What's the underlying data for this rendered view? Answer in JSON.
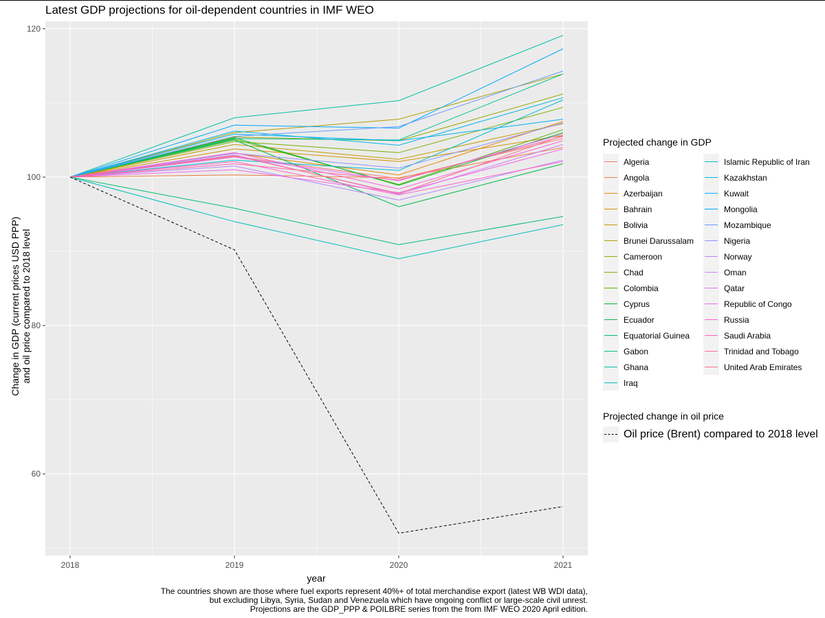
{
  "chart_data": {
    "type": "line",
    "title": "Latest GDP projections for oil-dependent countries in IMF WEO",
    "xlabel": "year",
    "ylabel_lines": [
      "Change in GDP (current prices USD PPP)",
      "and oil price  compared to 2018 level"
    ],
    "x": [
      "2018",
      "2019",
      "2020",
      "2021"
    ],
    "ylim": [
      49,
      121
    ],
    "yticks": [
      "60",
      "80",
      "100",
      "120"
    ],
    "caption_lines": [
      "The countries shown are those  where fuel exports represent 40%+ of total merchandise export (latest WB WDI data),",
      "but excluding Libya, Syria, Sudan and Venezuela which have ongoing conflict or large-scale civil unrest.",
      "Projections are the GDP_PPP & POILBRE series from the from IMF WEO 2020 April edition."
    ],
    "legend_gdp_title": "Projected change in GDP",
    "legend_oil_title": "Projected change in oil price",
    "series": [
      {
        "name": "Algeria",
        "color": "#F8766D",
        "values": [
          100,
          102.8,
          99.8,
          105.2
        ]
      },
      {
        "name": "Angola",
        "color": "#EE8044",
        "values": [
          100,
          100.3,
          99.9,
          104.0
        ]
      },
      {
        "name": "Azerbaijan",
        "color": "#E38900",
        "values": [
          100,
          103.2,
          100.3,
          107.5
        ]
      },
      {
        "name": "Bahrain",
        "color": "#D59100",
        "values": [
          100,
          103.8,
          102.1,
          105.6
        ]
      },
      {
        "name": "Bolivia",
        "color": "#C49A00",
        "values": [
          100,
          104.4,
          102.4,
          107.2
        ]
      },
      {
        "name": "Brunei Darussalam",
        "color": "#B0A000",
        "values": [
          100,
          106.0,
          107.8,
          113.9
        ]
      },
      {
        "name": "Cameroon",
        "color": "#99A800",
        "values": [
          100,
          105.4,
          104.9,
          111.2
        ]
      },
      {
        "name": "Chad",
        "color": "#7CAE00",
        "values": [
          100,
          104.8,
          103.3,
          109.4
        ]
      },
      {
        "name": "Colombia",
        "color": "#53B400",
        "values": [
          100,
          105.1,
          99.0,
          106.4
        ]
      },
      {
        "name": "Cyprus",
        "color": "#00B81F",
        "values": [
          100,
          105.3,
          98.9,
          106.0
        ]
      },
      {
        "name": "Ecuador",
        "color": "#00BB4E",
        "values": [
          100,
          105.0,
          96.0,
          101.8
        ]
      },
      {
        "name": "Equatorial Guinea",
        "color": "#00BE6F",
        "values": [
          100,
          95.8,
          90.9,
          94.7
        ]
      },
      {
        "name": "Gabon",
        "color": "#00C08B",
        "values": [
          100,
          105.2,
          105.0,
          113.9
        ]
      },
      {
        "name": "Ghana",
        "color": "#00C0A4",
        "values": [
          100,
          108.0,
          110.3,
          119.1
        ]
      },
      {
        "name": "Iraq",
        "color": "#00BFBA",
        "values": [
          100,
          94.0,
          89.0,
          93.6
        ]
      },
      {
        "name": "Islamic Republic of Iran",
        "color": "#00BCD0",
        "values": [
          100,
          102.3,
          100.9,
          110.4
        ]
      },
      {
        "name": "Kazakhstan",
        "color": "#00B7E3",
        "values": [
          100,
          106.2,
          104.3,
          110.7
        ]
      },
      {
        "name": "Kuwait",
        "color": "#00B0F6",
        "values": [
          100,
          105.8,
          104.9,
          107.8
        ]
      },
      {
        "name": "Mongolia",
        "color": "#00A8FF",
        "values": [
          100,
          107.0,
          106.6,
          117.3
        ]
      },
      {
        "name": "Mozambique",
        "color": "#619CFF",
        "values": [
          100,
          105.5,
          106.8,
          114.3
        ]
      },
      {
        "name": "Nigeria",
        "color": "#8F91FF",
        "values": [
          100,
          103.2,
          101.2,
          107.3
        ]
      },
      {
        "name": "Norway",
        "color": "#B385FF",
        "values": [
          100,
          101.5,
          96.9,
          102.3
        ]
      },
      {
        "name": "Oman",
        "color": "#CE7CF8",
        "values": [
          100,
          103.0,
          97.7,
          104.4
        ]
      },
      {
        "name": "Qatar",
        "color": "#E36EF6",
        "values": [
          100,
          102.7,
          99.5,
          105.8
        ]
      },
      {
        "name": "Republic of Congo",
        "color": "#F265E8",
        "values": [
          100,
          101.0,
          97.9,
          103.8
        ]
      },
      {
        "name": "Russia",
        "color": "#FB61D7",
        "values": [
          100,
          103.3,
          98.4,
          104.9
        ]
      },
      {
        "name": "Saudi Arabia",
        "color": "#FF63C4",
        "values": [
          100,
          102.1,
          97.6,
          102.1
        ]
      },
      {
        "name": "Trinidad and Tobago",
        "color": "#FF67A9",
        "values": [
          100,
          101.8,
          99.6,
          105.5
        ]
      },
      {
        "name": "United Arab Emirates",
        "color": "#FC6D8C",
        "values": [
          100,
          102.9,
          97.8,
          105.6
        ]
      }
    ],
    "oil_series": {
      "name": "Oil price (Brent) compared to 2018 level",
      "color": "#000000",
      "values": [
        100,
        90.2,
        52.0,
        55.6
      ]
    }
  }
}
